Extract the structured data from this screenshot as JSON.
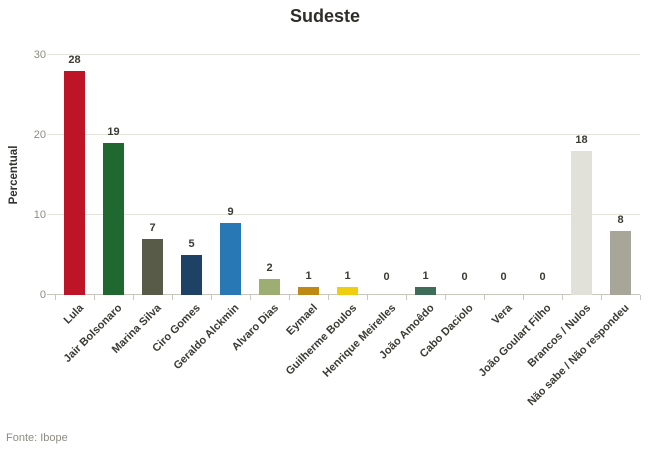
{
  "chart_data": {
    "type": "bar",
    "title": "Sudeste",
    "ylabel": "Percentual",
    "xlabel": "",
    "source": "Fonte: Ibope",
    "ylim": [
      0,
      30
    ],
    "yticks": [
      0,
      10,
      20,
      30
    ],
    "grid": "horizontal",
    "legend_position": "none",
    "value_labels_shown": true,
    "categories": [
      "Lula",
      "Jair Bolsonaro",
      "Marina Silva",
      "Ciro Gomes",
      "Geraldo Alckmin",
      "Alvaro Dias",
      "Eymael",
      "Guilherme Boulos",
      "Henrique Meirelles",
      "João Amoêdo",
      "Cabo Daciolo",
      "Vera",
      "João Goulart Filho",
      "Brancos / Nulos",
      "Não sabe / Não respondeu"
    ],
    "values": [
      28,
      19,
      7,
      5,
      9,
      2,
      1,
      1,
      0,
      1,
      0,
      0,
      0,
      18,
      8
    ],
    "bar_colors": [
      "#be1428",
      "#1f682f",
      "#575b48",
      "#1d4265",
      "#2878b5",
      "#9dae72",
      "#be8a13",
      "#efcd0f",
      null,
      "#3e6c58",
      null,
      null,
      null,
      "#e2e1d9",
      "#a7a698"
    ]
  },
  "colors": {
    "title_text": "#2f2e2a",
    "axis_line": "#c9c7be",
    "gridline": "#e5e3dc",
    "tick_text": "#8e8c81",
    "value_label_text": "#3b3a33",
    "category_label_text": "#3b3a33",
    "source_text": "#8e8c81",
    "background": "#ffffff"
  }
}
